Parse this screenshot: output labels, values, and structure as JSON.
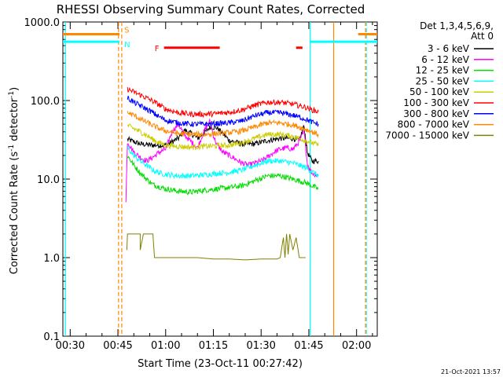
{
  "chart_data": {
    "type": "line",
    "title": "RHESSI Observing Summary Count Rates, Corrected",
    "xlabel": "Start Time (23-Oct-11 00:27:42)",
    "ylabel_main": "Corrected Count Rate (s",
    "ylabel_sup1": "-1",
    "ylabel_mid": " detector",
    "ylabel_sup2": "-1",
    "ylabel_end": ")",
    "y_scale": "log",
    "ylim": [
      0.1,
      1000
    ],
    "xlim_minutes": [
      27.7,
      126.5
    ],
    "y_ticks": [
      {
        "v": 1000,
        "label": "1000.0"
      },
      {
        "v": 100,
        "label": "100.0"
      },
      {
        "v": 10,
        "label": "10.0"
      },
      {
        "v": 1,
        "label": "1.0"
      },
      {
        "v": 0.1,
        "label": "0.1"
      }
    ],
    "x_ticks": [
      {
        "m": 30,
        "label": "00:30"
      },
      {
        "m": 45,
        "label": "00:45"
      },
      {
        "m": 60,
        "label": "01:00"
      },
      {
        "m": 75,
        "label": "01:15"
      },
      {
        "m": 90,
        "label": "01:30"
      },
      {
        "m": 105,
        "label": "01:45"
      },
      {
        "m": 120,
        "label": "02:00"
      }
    ],
    "legend": {
      "header": "Det 1,3,4,5,6,9,",
      "subheader": "Att 0",
      "placement": "right"
    },
    "series": [
      {
        "name": "3 - 6 keV",
        "color": "#000000",
        "points": [
          [
            48,
            32
          ],
          [
            52,
            28
          ],
          [
            56,
            27
          ],
          [
            60,
            27
          ],
          [
            64,
            33
          ],
          [
            66,
            42
          ],
          [
            68,
            38
          ],
          [
            70,
            33
          ],
          [
            72,
            38
          ],
          [
            74,
            46
          ],
          [
            76,
            45
          ],
          [
            78,
            38
          ],
          [
            80,
            31
          ],
          [
            84,
            28
          ],
          [
            88,
            28
          ],
          [
            92,
            31
          ],
          [
            96,
            33
          ],
          [
            100,
            33
          ],
          [
            102,
            31
          ],
          [
            103.5,
            47
          ],
          [
            104.5,
            22
          ],
          [
            105,
            20
          ],
          [
            106,
            17
          ],
          [
            108,
            17
          ]
        ]
      },
      {
        "name": "6 - 12 keV",
        "color": "#ff00ff",
        "points": [
          [
            47.5,
            5
          ],
          [
            48,
            30
          ],
          [
            50,
            22
          ],
          [
            52,
            19
          ],
          [
            54,
            17
          ],
          [
            56,
            19
          ],
          [
            58,
            22
          ],
          [
            60,
            24
          ],
          [
            62,
            40
          ],
          [
            64,
            50
          ],
          [
            66,
            36
          ],
          [
            68,
            30
          ],
          [
            70,
            25
          ],
          [
            72,
            40
          ],
          [
            74,
            55
          ],
          [
            75,
            36
          ],
          [
            76,
            28
          ],
          [
            78,
            22
          ],
          [
            80,
            20
          ],
          [
            84,
            16
          ],
          [
            86,
            15
          ],
          [
            88,
            16
          ],
          [
            90,
            17
          ],
          [
            92,
            19
          ],
          [
            94,
            22
          ],
          [
            96,
            24
          ],
          [
            98,
            25
          ],
          [
            100,
            24
          ],
          [
            102,
            30
          ],
          [
            103.5,
            40
          ],
          [
            104.5,
            16
          ],
          [
            105,
            14
          ],
          [
            106,
            12
          ],
          [
            108,
            11
          ]
        ]
      },
      {
        "name": "12 - 25 keV",
        "color": "#00dd00",
        "points": [
          [
            48,
            20
          ],
          [
            50,
            15
          ],
          [
            52,
            12
          ],
          [
            54,
            10
          ],
          [
            56,
            8.5
          ],
          [
            58,
            8
          ],
          [
            60,
            7.5
          ],
          [
            64,
            7
          ],
          [
            68,
            6.8
          ],
          [
            72,
            7.2
          ],
          [
            76,
            7.5
          ],
          [
            80,
            7.8
          ],
          [
            84,
            8.2
          ],
          [
            88,
            9.5
          ],
          [
            92,
            11
          ],
          [
            96,
            11
          ],
          [
            100,
            10
          ],
          [
            104,
            9
          ],
          [
            106,
            8.2
          ],
          [
            108,
            7.5
          ]
        ]
      },
      {
        "name": "25 - 50 keV",
        "color": "#00ffff",
        "points": [
          [
            48,
            25
          ],
          [
            50,
            20
          ],
          [
            52,
            17
          ],
          [
            54,
            15
          ],
          [
            56,
            13
          ],
          [
            58,
            12
          ],
          [
            60,
            11.5
          ],
          [
            64,
            11
          ],
          [
            68,
            11
          ],
          [
            72,
            11.3
          ],
          [
            76,
            11.8
          ],
          [
            80,
            12.2
          ],
          [
            84,
            13
          ],
          [
            88,
            15
          ],
          [
            92,
            17
          ],
          [
            96,
            17
          ],
          [
            100,
            16
          ],
          [
            104,
            14
          ],
          [
            106,
            12.5
          ],
          [
            108,
            11
          ]
        ]
      },
      {
        "name": "50 - 100 keV",
        "color": "#cccc00",
        "points": [
          [
            48,
            48
          ],
          [
            50,
            44
          ],
          [
            52,
            40
          ],
          [
            54,
            36
          ],
          [
            56,
            32
          ],
          [
            58,
            29
          ],
          [
            60,
            27
          ],
          [
            64,
            26
          ],
          [
            68,
            25.5
          ],
          [
            72,
            26
          ],
          [
            76,
            26.5
          ],
          [
            80,
            27
          ],
          [
            84,
            29
          ],
          [
            88,
            33
          ],
          [
            92,
            37
          ],
          [
            96,
            37
          ],
          [
            100,
            35
          ],
          [
            104,
            31
          ],
          [
            106,
            29
          ],
          [
            108,
            27
          ]
        ]
      },
      {
        "name": "100 - 300 keV",
        "color": "#ff0000",
        "points": [
          [
            48,
            140
          ],
          [
            50,
            128
          ],
          [
            52,
            118
          ],
          [
            54,
            108
          ],
          [
            56,
            98
          ],
          [
            58,
            88
          ],
          [
            60,
            78
          ],
          [
            64,
            70
          ],
          [
            68,
            67
          ],
          [
            72,
            67
          ],
          [
            76,
            68
          ],
          [
            80,
            71
          ],
          [
            84,
            76
          ],
          [
            88,
            87
          ],
          [
            92,
            95
          ],
          [
            96,
            95
          ],
          [
            100,
            90
          ],
          [
            104,
            82
          ],
          [
            106,
            76
          ],
          [
            108,
            72
          ]
        ]
      },
      {
        "name": "300 - 800 keV",
        "color": "#0000ff",
        "points": [
          [
            48,
            108
          ],
          [
            50,
            95
          ],
          [
            52,
            86
          ],
          [
            54,
            78
          ],
          [
            56,
            70
          ],
          [
            58,
            62
          ],
          [
            60,
            56
          ],
          [
            64,
            52
          ],
          [
            68,
            50
          ],
          [
            72,
            50
          ],
          [
            76,
            51
          ],
          [
            80,
            52
          ],
          [
            84,
            55
          ],
          [
            88,
            64
          ],
          [
            92,
            70
          ],
          [
            96,
            70
          ],
          [
            100,
            65
          ],
          [
            104,
            58
          ],
          [
            106,
            53
          ],
          [
            108,
            50
          ]
        ]
      },
      {
        "name": "800 - 7000 keV",
        "color": "#ff8800",
        "points": [
          [
            48,
            70
          ],
          [
            50,
            65
          ],
          [
            52,
            58
          ],
          [
            54,
            53
          ],
          [
            56,
            48
          ],
          [
            58,
            44
          ],
          [
            60,
            41
          ],
          [
            64,
            38
          ],
          [
            68,
            37
          ],
          [
            72,
            37
          ],
          [
            76,
            38
          ],
          [
            80,
            39
          ],
          [
            84,
            41
          ],
          [
            88,
            46
          ],
          [
            92,
            52
          ],
          [
            96,
            52
          ],
          [
            100,
            49
          ],
          [
            104,
            43
          ],
          [
            106,
            40
          ],
          [
            108,
            37
          ]
        ]
      },
      {
        "name": "7000 - 15000 keV",
        "color": "#808000",
        "points": [
          [
            47.8,
            1.25
          ],
          [
            48,
            2
          ],
          [
            52,
            2
          ],
          [
            52,
            1.25
          ],
          [
            53,
            2
          ],
          [
            56,
            2
          ],
          [
            56.5,
            1
          ],
          [
            70,
            1
          ],
          [
            75,
            0.96
          ],
          [
            80,
            0.96
          ],
          [
            84,
            0.94
          ],
          [
            86,
            0.94
          ],
          [
            90,
            0.96
          ],
          [
            95,
            0.96
          ],
          [
            96,
            1
          ],
          [
            97,
            1.8
          ],
          [
            97.5,
            1
          ],
          [
            98,
            2
          ],
          [
            98.5,
            1.1
          ],
          [
            99,
            2
          ],
          [
            100,
            1.25
          ],
          [
            101,
            1.8
          ],
          [
            102,
            1
          ],
          [
            104,
            1
          ]
        ]
      }
    ],
    "flags": [
      {
        "label": "S",
        "color": "#ff8800",
        "value": 700,
        "segments": [
          [
            27.7,
            45.5
          ],
          [
            120.5,
            126.5
          ]
        ]
      },
      {
        "label": "N",
        "color": "#00ffff",
        "value": 560,
        "segments": [
          [
            27.7,
            45.5
          ],
          [
            105.5,
            126.5
          ]
        ]
      },
      {
        "label": "F",
        "color": "#ff0000",
        "value": 470,
        "segments": [
          [
            59.5,
            77
          ],
          [
            101,
            103
          ]
        ]
      }
    ],
    "vlines": [
      {
        "m": 28.5,
        "color": "#00ffff",
        "style": "solid"
      },
      {
        "m": 45.2,
        "color": "#ff8800",
        "style": "dashed"
      },
      {
        "m": 46.2,
        "color": "#ff8800",
        "style": "dashed"
      },
      {
        "m": 105.4,
        "color": "#00ffff",
        "style": "solid"
      },
      {
        "m": 112.8,
        "color": "#ff8800",
        "style": "solid"
      },
      {
        "m": 122.8,
        "color": "#ff8800",
        "style": "dashed"
      },
      {
        "m": 123.1,
        "color": "#00ffff",
        "style": "dashed"
      }
    ]
  },
  "footer": {
    "timestamp": "21-Oct-2021 13:57"
  }
}
